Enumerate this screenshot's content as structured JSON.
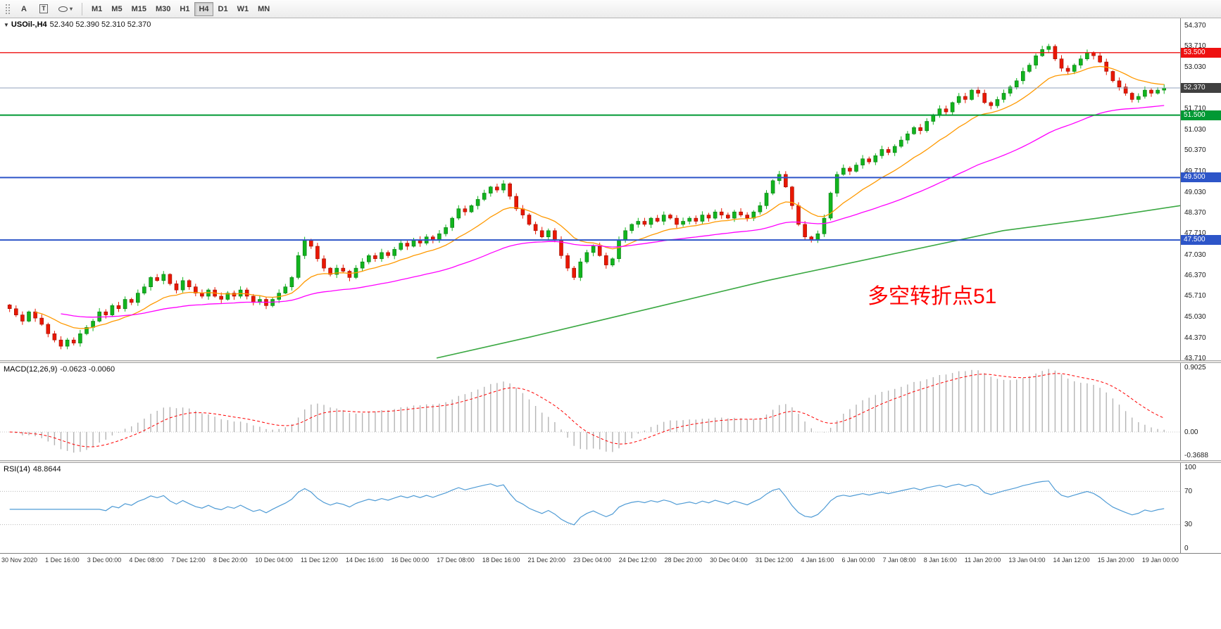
{
  "toolbar": {
    "text_tool_label": "A",
    "label_tool_label": "T",
    "shapes_caret": "▾",
    "timeframes": [
      "M1",
      "M5",
      "M15",
      "M30",
      "H1",
      "H4",
      "D1",
      "W1",
      "MN"
    ],
    "active_timeframe": "H4"
  },
  "main_chart": {
    "dropdown_glyph": "▼",
    "symbol_label": "USOil-,H4",
    "ohlc_readout": "52.340 52.390 52.310 52.370",
    "annotation": {
      "text": "多空转折点51",
      "color": "#ff0000"
    },
    "axis_ticks": [
      {
        "label": "54.370",
        "price": 54.37
      },
      {
        "label": "53.710",
        "price": 53.71
      },
      {
        "label": "53.030",
        "price": 53.03
      },
      {
        "label": "52.370",
        "price": 52.37
      },
      {
        "label": "51.710",
        "price": 51.71
      },
      {
        "label": "51.030",
        "price": 51.03
      },
      {
        "label": "50.370",
        "price": 50.37
      },
      {
        "label": "49.710",
        "price": 49.71
      },
      {
        "label": "49.030",
        "price": 49.03
      },
      {
        "label": "48.370",
        "price": 48.37
      },
      {
        "label": "47.710",
        "price": 47.71
      },
      {
        "label": "47.030",
        "price": 47.03
      },
      {
        "label": "46.370",
        "price": 46.37
      },
      {
        "label": "45.710",
        "price": 45.71
      },
      {
        "label": "45.030",
        "price": 45.03
      },
      {
        "label": "44.370",
        "price": 44.37
      },
      {
        "label": "43.710",
        "price": 43.71
      }
    ],
    "hlines": [
      {
        "price": 53.5,
        "label": "53.500",
        "color": "#ee1111",
        "width": 1.4
      },
      {
        "price": 51.5,
        "label": "51.500",
        "color": "#019934",
        "width": 2
      },
      {
        "price": 49.5,
        "label": "49.500",
        "color": "#2d55c8",
        "width": 2
      },
      {
        "price": 47.5,
        "label": "47.500",
        "color": "#2d55c8",
        "width": 2
      }
    ],
    "current_price_tag": {
      "price": 52.37,
      "label": "52.370",
      "tag_color": "#404040",
      "line_color": "#90a0bc"
    }
  },
  "macd_panel": {
    "label": "MACD(12,26,9)",
    "values": "-0.0623 -0.0060",
    "range": [
      -0.3688,
      0.9025
    ],
    "axis_ticks": [
      {
        "label": "0.9025",
        "value": 0.9025
      },
      {
        "label": "0.00",
        "value": 0
      },
      {
        "label": "-0.3688",
        "value": -0.3688
      }
    ]
  },
  "rsi_panel": {
    "label": "RSI(14)",
    "value": "48.8644",
    "levels": [
      70,
      30
    ],
    "axis_ticks": [
      {
        "label": "100",
        "value": 100
      },
      {
        "label": "70",
        "value": 70
      },
      {
        "label": "30",
        "value": 30
      },
      {
        "label": "0",
        "value": 0
      }
    ]
  },
  "time_axis": [
    "30 Nov 2020",
    "1 Dec 16:00",
    "3 Dec 00:00",
    "4 Dec 08:00",
    "7 Dec 12:00",
    "8 Dec 20:00",
    "10 Dec 04:00",
    "11 Dec 12:00",
    "14 Dec 16:00",
    "16 Dec 00:00",
    "17 Dec 08:00",
    "18 Dec 16:00",
    "21 Dec 20:00",
    "23 Dec 04:00",
    "24 Dec 12:00",
    "28 Dec 20:00",
    "30 Dec 04:00",
    "31 Dec 12:00",
    "4 Jan 16:00",
    "6 Jan 00:00",
    "7 Jan 08:00",
    "8 Jan 16:00",
    "11 Jan 20:00",
    "13 Jan 04:00",
    "14 Jan 12:00",
    "15 Jan 20:00",
    "19 Jan 00:00"
  ],
  "colors": {
    "up": "#11b41e",
    "down": "#e91703",
    "up_border": "#0a7a12",
    "down_border": "#9c1000",
    "ma_fast": "#ff9900",
    "ma_mid": "#ff00ff",
    "ma_slow": "#3aa842",
    "macd_hist": "#b4b4b4",
    "macd_signal": "#ff0000",
    "rsi_line": "#4f9bd5"
  },
  "chart_data": {
    "type": "candlestick",
    "symbol": "USOil",
    "timeframe": "H4",
    "title": "USOil-,H4 52.340 52.390 52.310 52.370",
    "price_range": [
      43.65,
      54.6
    ],
    "closes": [
      45.3,
      45.1,
      44.9,
      45.2,
      45.0,
      44.8,
      44.5,
      44.3,
      44.1,
      44.3,
      44.2,
      44.5,
      44.7,
      44.9,
      45.2,
      45.1,
      45.4,
      45.3,
      45.6,
      45.5,
      45.8,
      46.0,
      46.3,
      46.2,
      46.4,
      46.1,
      45.9,
      46.2,
      46.0,
      45.8,
      45.7,
      45.9,
      45.7,
      45.6,
      45.8,
      45.7,
      45.9,
      45.7,
      45.5,
      45.6,
      45.4,
      45.6,
      45.8,
      46.0,
      46.3,
      47.0,
      47.5,
      47.3,
      46.9,
      46.6,
      46.4,
      46.6,
      46.5,
      46.3,
      46.6,
      46.8,
      47.0,
      46.9,
      47.1,
      47.0,
      47.2,
      47.4,
      47.3,
      47.5,
      47.4,
      47.6,
      47.5,
      47.7,
      47.9,
      48.2,
      48.5,
      48.4,
      48.6,
      48.8,
      49.0,
      49.2,
      49.1,
      49.3,
      48.9,
      48.5,
      48.3,
      48.0,
      47.8,
      47.6,
      47.8,
      47.5,
      47.0,
      46.6,
      46.3,
      46.8,
      47.1,
      47.3,
      47.0,
      46.7,
      46.9,
      47.5,
      47.8,
      48.0,
      48.1,
      48.0,
      48.2,
      48.1,
      48.3,
      48.2,
      48.0,
      48.1,
      48.2,
      48.1,
      48.3,
      48.2,
      48.4,
      48.3,
      48.2,
      48.4,
      48.3,
      48.2,
      48.4,
      48.6,
      49.0,
      49.4,
      49.6,
      49.2,
      48.6,
      48.0,
      47.6,
      47.5,
      47.7,
      48.2,
      49.0,
      49.6,
      49.8,
      49.7,
      49.9,
      50.1,
      50.0,
      50.2,
      50.4,
      50.3,
      50.5,
      50.7,
      50.9,
      51.1,
      51.0,
      51.3,
      51.5,
      51.7,
      51.6,
      51.9,
      52.1,
      52.0,
      52.3,
      52.2,
      51.9,
      51.8,
      52.0,
      52.2,
      52.4,
      52.6,
      52.9,
      53.1,
      53.4,
      53.6,
      53.7,
      53.3,
      53.0,
      52.9,
      53.1,
      53.3,
      53.5,
      53.4,
      53.2,
      52.9,
      52.6,
      52.4,
      52.2,
      52.0,
      52.1,
      52.3,
      52.2,
      52.3,
      52.37
    ],
    "moving_averages": [
      {
        "name": "fast",
        "period": 14,
        "color": "#ff9900"
      },
      {
        "name": "mid",
        "period": 50,
        "color": "#ff00ff"
      },
      {
        "name": "slow",
        "color": "#3aa842"
      }
    ],
    "ma_slow_points": [
      [
        0.37,
        43.72
      ],
      [
        0.45,
        44.4
      ],
      [
        0.55,
        45.3
      ],
      [
        0.65,
        46.2
      ],
      [
        0.75,
        47.0
      ],
      [
        0.85,
        47.8
      ],
      [
        0.93,
        48.2
      ],
      [
        1.0,
        48.6
      ]
    ],
    "macd": {
      "fast": 12,
      "slow": 26,
      "signal": 9,
      "last_values": [
        -0.0623,
        -0.006
      ]
    },
    "rsi": {
      "period": 14,
      "last_value": 48.8644
    }
  }
}
